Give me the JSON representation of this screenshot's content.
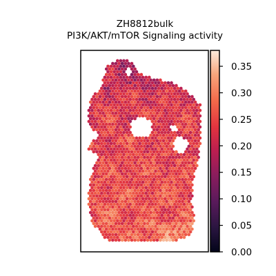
{
  "chart_data": {
    "type": "heatmap",
    "title": "ZH8812bulk",
    "subtitle": "PI3K/AKT/mTOR Signaling activity",
    "xlabel": "",
    "ylabel": "",
    "colorbar": {
      "colormap": "rocket",
      "min": 0.0,
      "max": 0.38,
      "ticks": [
        0.0,
        0.05,
        0.1,
        0.15,
        0.2,
        0.25,
        0.3,
        0.35
      ],
      "tick_labels": [
        "0.00",
        "0.05",
        "0.10",
        "0.15",
        "0.20",
        "0.25",
        "0.30",
        "0.35"
      ],
      "placement": "right"
    },
    "spots": {
      "marker": "hexagon",
      "value_range_observed": [
        0.08,
        0.36
      ],
      "typical_value": 0.24
    }
  }
}
